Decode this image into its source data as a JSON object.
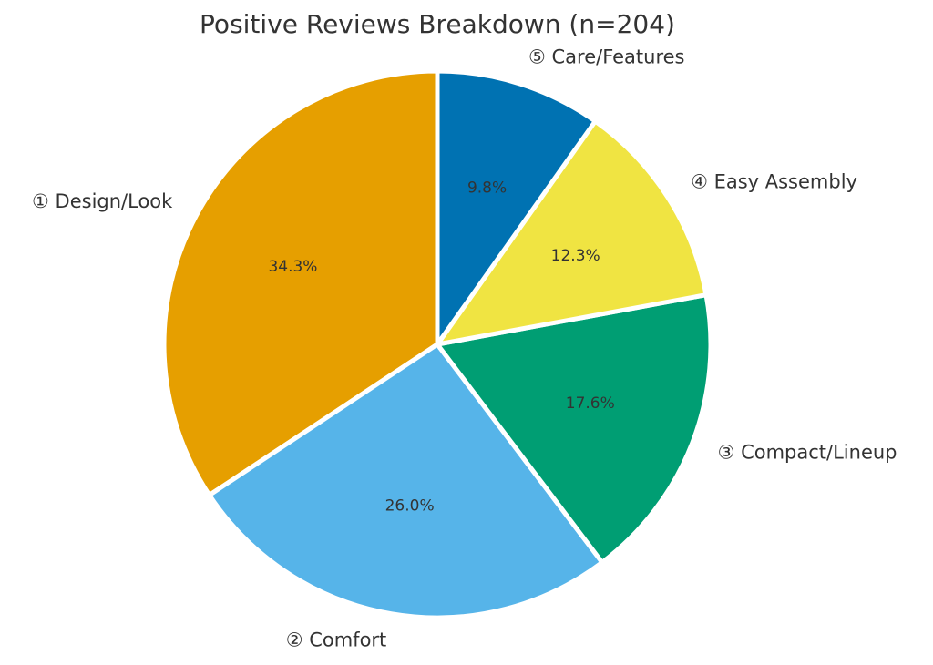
{
  "chart_data": {
    "type": "pie",
    "title": "Positive Reviews Breakdown (n=204)",
    "categories": [
      "① Design/Look",
      "② Comfort",
      "③ Compact/Lineup",
      "④ Easy Assembly",
      "⑤ Care/Features"
    ],
    "values": [
      34.3,
      26.0,
      17.6,
      12.3,
      9.8
    ],
    "value_labels": [
      "34.3%",
      "26.0%",
      "17.6%",
      "12.3%",
      "9.8%"
    ],
    "colors": [
      "#E69F00",
      "#56B4E9",
      "#009E73",
      "#F0E442",
      "#0072B2"
    ]
  }
}
